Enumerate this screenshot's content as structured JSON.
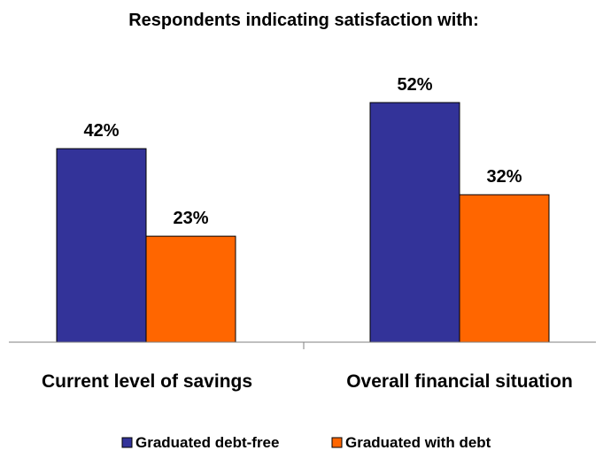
{
  "chart_data": {
    "type": "bar",
    "title": "Respondents indicating satisfaction with:",
    "categories": [
      "Current level of savings",
      "Overall financial situation"
    ],
    "series": [
      {
        "name": "Graduated debt-free",
        "values": [
          42,
          52
        ],
        "labels": [
          "42%",
          "52%"
        ],
        "color": "#333399"
      },
      {
        "name": "Graduated with debt",
        "values": [
          23,
          32
        ],
        "labels": [
          "23%",
          "32%"
        ],
        "color": "#FF6600"
      }
    ],
    "unit": "%",
    "ylim": [
      0,
      60
    ],
    "grid": false,
    "legend_position": "bottom"
  }
}
